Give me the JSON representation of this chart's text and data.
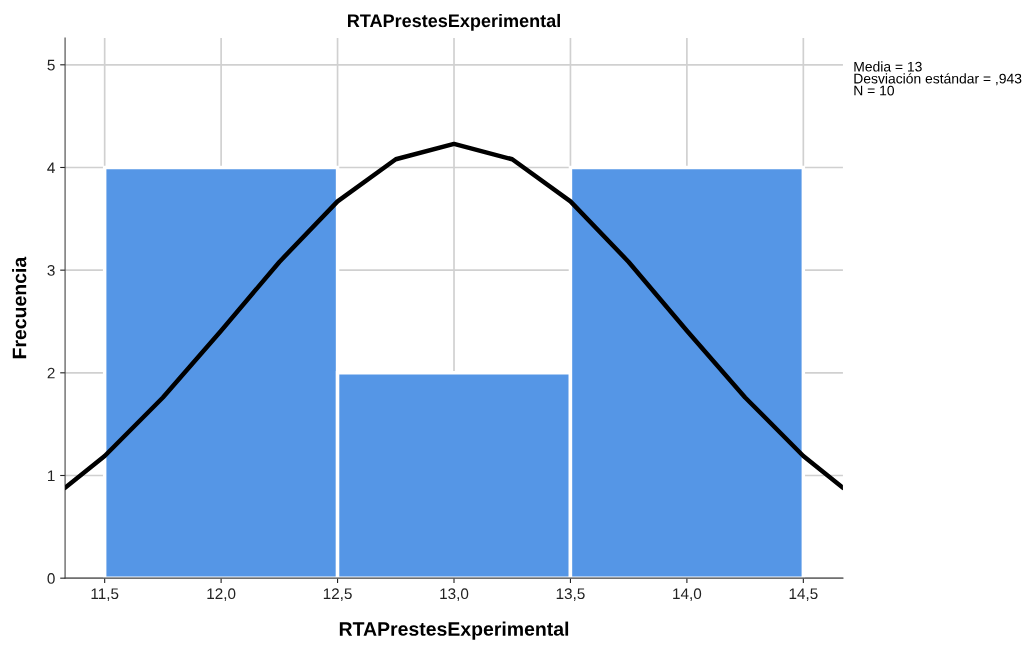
{
  "chart_data": {
    "type": "histogram",
    "title": "RTAPrestesExperimental",
    "xlabel": "RTAPrestesExperimental",
    "ylabel": "Frecuencia",
    "bins": [
      11.5,
      12.5,
      13.5,
      14.5
    ],
    "values": [
      4,
      2,
      4
    ],
    "color": "#5596e6",
    "series": [
      {
        "type": "line",
        "color": "#000000",
        "x": [
          11.33,
          11.5,
          11.75,
          12.0,
          12.25,
          12.5,
          12.75,
          13.0,
          13.25,
          13.5,
          13.75,
          14.0,
          14.25,
          14.5,
          14.67
        ],
        "values": [
          0.88,
          1.19,
          1.76,
          2.41,
          3.08,
          3.67,
          4.08,
          4.23,
          4.08,
          3.67,
          3.08,
          2.41,
          1.76,
          1.19,
          0.88
        ]
      }
    ],
    "xlim": [
      11.33,
      14.67
    ],
    "ylim": [
      0,
      5.26
    ],
    "xticks": [
      {
        "value": 11.5,
        "label": "11,5"
      },
      {
        "value": 12.0,
        "label": "12,0"
      },
      {
        "value": 12.5,
        "label": "12,5"
      },
      {
        "value": 13.0,
        "label": "13,0"
      },
      {
        "value": 13.5,
        "label": "13,5"
      },
      {
        "value": 14.0,
        "label": "14,0"
      },
      {
        "value": 14.5,
        "label": "14,5"
      }
    ],
    "yticks": [
      0,
      1,
      2,
      3,
      4,
      5
    ],
    "grid": true,
    "marker": "none",
    "line_style": "solid",
    "annotations": [
      "Media = 13",
      "Desviación estándar = ,943",
      "N = 10"
    ]
  }
}
